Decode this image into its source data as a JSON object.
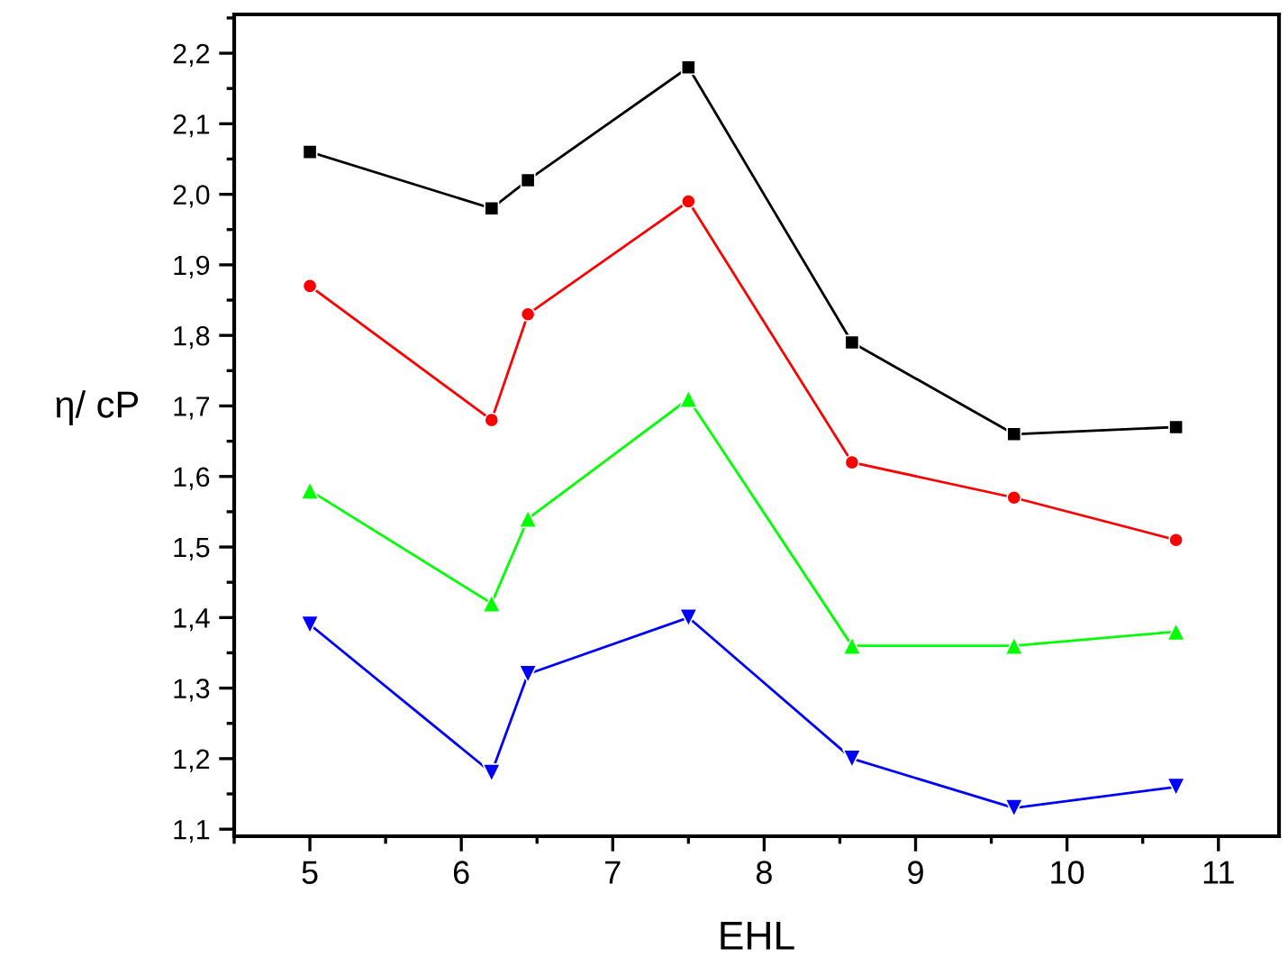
{
  "chart_data": {
    "type": "line",
    "xlabel": "EHL",
    "ylabel": "η/ cP",
    "x": [
      5,
      6.2,
      6.44,
      7.5,
      8.58,
      9.65,
      10.72
    ],
    "series": [
      {
        "color": "#000000",
        "marker": "square",
        "values": [
          2.06,
          1.98,
          2.02,
          2.18,
          1.79,
          1.66,
          1.67
        ]
      },
      {
        "color": "#ff0000",
        "marker": "circle",
        "values": [
          1.87,
          1.68,
          1.83,
          1.99,
          1.62,
          1.57,
          1.51
        ]
      },
      {
        "color": "#00ff00",
        "marker": "triangle",
        "values": [
          1.58,
          1.42,
          1.54,
          1.71,
          1.36,
          1.36,
          1.38
        ]
      },
      {
        "color": "#0000ff",
        "marker": "triangle_down",
        "values": [
          1.39,
          1.18,
          1.32,
          1.4,
          1.2,
          1.13,
          1.16
        ]
      }
    ],
    "xlim": [
      4.5,
      11.4
    ],
    "ylim": [
      1.09,
      2.255
    ],
    "xticks": [
      5,
      6,
      7,
      8,
      9,
      10,
      11
    ],
    "yticks": [
      {
        "value": 1.1,
        "label": "1,1"
      },
      {
        "value": 1.2,
        "label": "1,2"
      },
      {
        "value": 1.3,
        "label": "1,3"
      },
      {
        "value": 1.4,
        "label": "1,4"
      },
      {
        "value": 1.5,
        "label": "1,5"
      },
      {
        "value": 1.6,
        "label": "1,6"
      },
      {
        "value": 1.7,
        "label": "1,7"
      },
      {
        "value": 1.8,
        "label": "1,8"
      },
      {
        "value": 1.9,
        "label": "1,9"
      },
      {
        "value": 2.0,
        "label": "2,0"
      },
      {
        "value": 2.1,
        "label": "2,1"
      },
      {
        "value": 2.2,
        "label": "2,2"
      }
    ],
    "grid": false,
    "legend": false,
    "line_style": "solid"
  }
}
